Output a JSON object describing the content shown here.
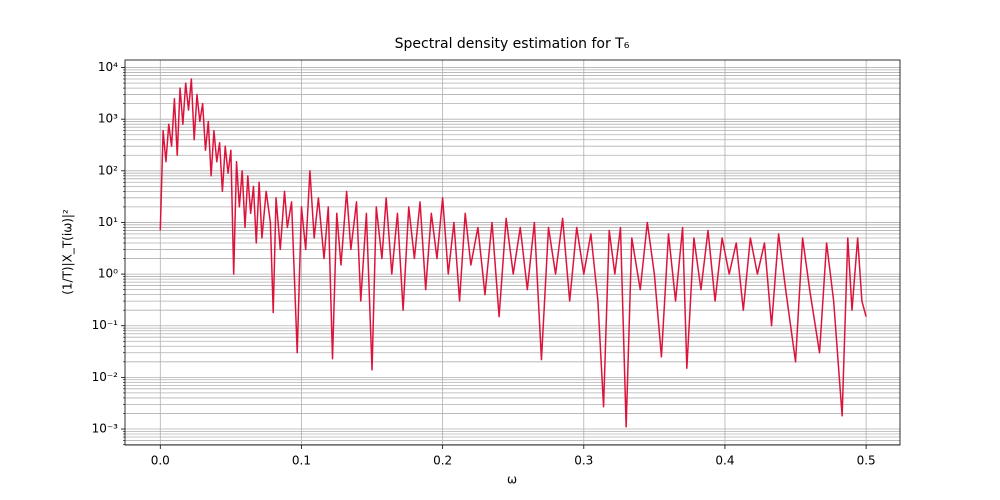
{
  "chart_data": {
    "type": "line",
    "title": "Spectral density estimation for T₆",
    "x_label": "ω",
    "y_label": "(1/T)|X_T(iω)|²",
    "color": "#dc143c",
    "y_scale": "log",
    "grid": true,
    "xlim": [
      -0.025,
      0.524
    ],
    "ylim": [
      0.00049,
      14000
    ],
    "xticks": [
      {
        "value": 0,
        "label": "0.0"
      },
      0.1,
      0.2,
      0.3,
      0.4,
      0.5
    ],
    "yticks": [
      {
        "value": 0.001,
        "label": "10⁻³"
      },
      {
        "value": 0.01,
        "label": "10⁻²"
      },
      {
        "value": 0.1,
        "label": "10⁻¹"
      },
      {
        "value": 1,
        "label": "10⁰"
      },
      {
        "value": 10,
        "label": "10¹"
      },
      {
        "value": 100,
        "label": "10²"
      },
      {
        "value": 1000,
        "label": "10³"
      },
      {
        "value": 10000,
        "label": "10⁴"
      }
    ],
    "yminorticks": [
      0.0005,
      0.0006,
      0.0007,
      0.0008,
      0.0009,
      0.002,
      0.003,
      0.004,
      0.005,
      0.006,
      0.007,
      0.008,
      0.009,
      0.02,
      0.03,
      0.04,
      0.05,
      0.06,
      0.07,
      0.08,
      0.09,
      0.2,
      0.3,
      0.4,
      0.5,
      0.6,
      0.7,
      0.8,
      0.9,
      2,
      3,
      4,
      5,
      6,
      7,
      8,
      9,
      20,
      30,
      40,
      50,
      60,
      70,
      80,
      90,
      200,
      300,
      400,
      500,
      600,
      700,
      800,
      900,
      2000,
      3000,
      4000,
      5000,
      6000,
      7000,
      8000,
      9000
    ],
    "x": [
      0,
      0.002,
      0.004,
      0.006,
      0.008,
      0.01,
      0.012,
      0.014,
      0.016,
      0.018,
      0.02,
      0.022,
      0.024,
      0.026,
      0.028,
      0.03,
      0.032,
      0.034,
      0.036,
      0.038,
      0.04,
      0.042,
      0.044,
      0.046,
      0.048,
      0.05,
      0.052,
      0.054,
      0.056,
      0.058,
      0.06,
      0.062,
      0.064,
      0.066,
      0.068,
      0.07,
      0.072,
      0.075,
      0.078,
      0.08,
      0.082,
      0.085,
      0.088,
      0.09,
      0.093,
      0.097,
      0.1,
      0.103,
      0.106,
      0.109,
      0.112,
      0.116,
      0.119,
      0.122,
      0.125,
      0.128,
      0.132,
      0.135,
      0.139,
      0.142,
      0.146,
      0.15,
      0.153,
      0.157,
      0.16,
      0.164,
      0.168,
      0.172,
      0.176,
      0.18,
      0.184,
      0.188,
      0.192,
      0.196,
      0.2,
      0.204,
      0.208,
      0.212,
      0.216,
      0.22,
      0.225,
      0.23,
      0.235,
      0.24,
      0.245,
      0.25,
      0.255,
      0.26,
      0.265,
      0.27,
      0.275,
      0.28,
      0.285,
      0.29,
      0.295,
      0.3,
      0.305,
      0.31,
      0.314,
      0.318,
      0.322,
      0.326,
      0.33,
      0.334,
      0.34,
      0.345,
      0.35,
      0.355,
      0.36,
      0.365,
      0.37,
      0.373,
      0.378,
      0.383,
      0.388,
      0.393,
      0.398,
      0.403,
      0.408,
      0.413,
      0.418,
      0.423,
      0.428,
      0.433,
      0.438,
      0.443,
      0.45,
      0.455,
      0.46,
      0.467,
      0.472,
      0.477,
      0.483,
      0.487,
      0.49,
      0.494,
      0.497,
      0.5
    ],
    "values": [
      7,
      600,
      150,
      800,
      300,
      2500,
      200,
      4000,
      800,
      5000,
      1500,
      6000,
      400,
      3000,
      900,
      2000,
      250,
      900,
      80,
      600,
      150,
      350,
      40,
      300,
      90,
      250,
      1,
      150,
      20,
      100,
      8,
      80,
      15,
      50,
      4,
      60,
      5,
      40,
      10,
      0.18,
      30,
      3,
      40,
      8,
      25,
      0.03,
      20,
      3,
      100,
      5,
      30,
      2,
      20,
      0.023,
      15,
      1.5,
      40,
      3,
      25,
      0.3,
      15,
      0.014,
      20,
      2,
      30,
      1,
      15,
      0.2,
      20,
      2,
      25,
      0.5,
      15,
      2,
      30,
      1,
      10,
      0.3,
      15,
      1.5,
      8,
      0.4,
      10,
      0.15,
      12,
      1,
      8,
      0.5,
      10,
      0.022,
      8,
      1,
      12,
      0.3,
      8,
      1,
      6,
      0.3,
      0.0027,
      7,
      1,
      8,
      0.0011,
      5,
      0.5,
      10,
      1,
      0.025,
      6,
      0.3,
      8,
      0.015,
      5,
      0.5,
      7,
      0.3,
      5,
      1,
      4,
      0.2,
      5,
      1,
      4,
      0.1,
      6,
      0.5,
      0.02,
      5,
      0.5,
      0.03,
      4,
      0.3,
      0.0018,
      5,
      0.2,
      5,
      0.3,
      0.15
    ]
  }
}
